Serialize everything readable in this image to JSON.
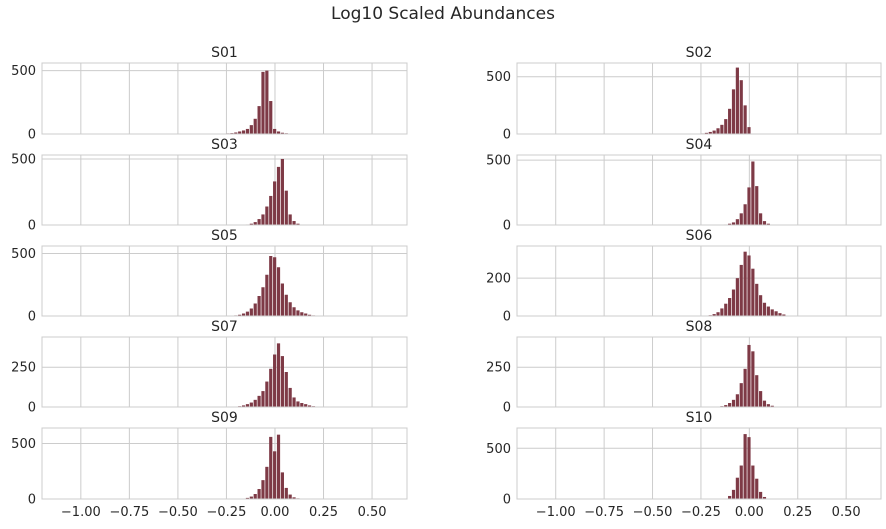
{
  "figure": {
    "title": "Log10 Scaled Abundances"
  },
  "chart_data": {
    "type": "bar",
    "shared_x": {
      "xlim": [
        -1.2,
        0.68
      ],
      "ticks": [
        -1.0,
        -0.75,
        -0.5,
        -0.25,
        0.0,
        0.25,
        0.5
      ],
      "tick_labels": [
        "−1.00",
        "−0.75",
        "−0.50",
        "−0.25",
        "0.00",
        "0.25",
        "0.50"
      ]
    },
    "bar_color": "#7e3a46",
    "bin_width": 0.0195,
    "grid": true,
    "panels": [
      {
        "title": "S01",
        "ylim": [
          0,
          560
        ],
        "yticks": [
          0,
          500
        ],
        "bins": [
          [
            -0.25,
            5
          ],
          [
            -0.23,
            7
          ],
          [
            -0.21,
            12
          ],
          [
            -0.19,
            20
          ],
          [
            -0.17,
            28
          ],
          [
            -0.15,
            40
          ],
          [
            -0.13,
            70
          ],
          [
            -0.11,
            120
          ],
          [
            -0.09,
            220
          ],
          [
            -0.07,
            490
          ],
          [
            -0.05,
            500
          ],
          [
            -0.03,
            260
          ],
          [
            -0.01,
            40
          ],
          [
            0.01,
            20
          ],
          [
            0.03,
            10
          ],
          [
            0.05,
            6
          ]
        ]
      },
      {
        "title": "S02",
        "ylim": [
          0,
          620
        ],
        "yticks": [
          0,
          500
        ],
        "bins": [
          [
            -0.25,
            5
          ],
          [
            -0.23,
            10
          ],
          [
            -0.21,
            18
          ],
          [
            -0.19,
            30
          ],
          [
            -0.17,
            50
          ],
          [
            -0.15,
            80
          ],
          [
            -0.13,
            130
          ],
          [
            -0.11,
            220
          ],
          [
            -0.09,
            390
          ],
          [
            -0.07,
            580
          ],
          [
            -0.05,
            470
          ],
          [
            -0.03,
            250
          ],
          [
            -0.01,
            60
          ]
        ]
      },
      {
        "title": "S03",
        "ylim": [
          0,
          530
        ],
        "yticks": [
          0,
          500
        ],
        "bins": [
          [
            -0.15,
            4
          ],
          [
            -0.13,
            10
          ],
          [
            -0.11,
            22
          ],
          [
            -0.09,
            45
          ],
          [
            -0.07,
            80
          ],
          [
            -0.05,
            140
          ],
          [
            -0.03,
            220
          ],
          [
            -0.01,
            330
          ],
          [
            0.01,
            440
          ],
          [
            0.03,
            500
          ],
          [
            0.05,
            260
          ],
          [
            0.07,
            80
          ],
          [
            0.09,
            30
          ],
          [
            0.11,
            10
          ]
        ]
      },
      {
        "title": "S04",
        "ylim": [
          0,
          540
        ],
        "yticks": [
          0,
          500
        ],
        "bins": [
          [
            -0.13,
            4
          ],
          [
            -0.11,
            10
          ],
          [
            -0.09,
            20
          ],
          [
            -0.07,
            45
          ],
          [
            -0.05,
            90
          ],
          [
            -0.03,
            160
          ],
          [
            -0.01,
            290
          ],
          [
            0.01,
            490
          ],
          [
            0.03,
            300
          ],
          [
            0.05,
            90
          ],
          [
            0.07,
            30
          ],
          [
            0.09,
            10
          ]
        ]
      },
      {
        "title": "S05",
        "ylim": [
          0,
          560
        ],
        "yticks": [
          0,
          500
        ],
        "bins": [
          [
            -0.21,
            5
          ],
          [
            -0.19,
            10
          ],
          [
            -0.17,
            20
          ],
          [
            -0.15,
            35
          ],
          [
            -0.13,
            60
          ],
          [
            -0.11,
            100
          ],
          [
            -0.09,
            160
          ],
          [
            -0.07,
            230
          ],
          [
            -0.05,
            330
          ],
          [
            -0.03,
            480
          ],
          [
            -0.01,
            470
          ],
          [
            0.01,
            390
          ],
          [
            0.03,
            260
          ],
          [
            0.05,
            170
          ],
          [
            0.07,
            110
          ],
          [
            0.09,
            70
          ],
          [
            0.11,
            45
          ],
          [
            0.13,
            30
          ],
          [
            0.15,
            20
          ],
          [
            0.17,
            10
          ],
          [
            0.19,
            5
          ]
        ]
      },
      {
        "title": "S06",
        "ylim": [
          0,
          370
        ],
        "yticks": [
          0,
          200
        ],
        "bins": [
          [
            -0.21,
            4
          ],
          [
            -0.19,
            10
          ],
          [
            -0.17,
            20
          ],
          [
            -0.15,
            40
          ],
          [
            -0.13,
            65
          ],
          [
            -0.11,
            95
          ],
          [
            -0.09,
            140
          ],
          [
            -0.07,
            200
          ],
          [
            -0.05,
            270
          ],
          [
            -0.03,
            340
          ],
          [
            -0.01,
            320
          ],
          [
            0.01,
            250
          ],
          [
            0.03,
            170
          ],
          [
            0.05,
            110
          ],
          [
            0.07,
            70
          ],
          [
            0.09,
            50
          ],
          [
            0.11,
            35
          ],
          [
            0.13,
            25
          ],
          [
            0.15,
            15
          ],
          [
            0.17,
            8
          ]
        ]
      },
      {
        "title": "S07",
        "ylim": [
          0,
          440
        ],
        "yticks": [
          0,
          250
        ],
        "bins": [
          [
            -0.19,
            5
          ],
          [
            -0.17,
            10
          ],
          [
            -0.15,
            18
          ],
          [
            -0.13,
            28
          ],
          [
            -0.11,
            45
          ],
          [
            -0.09,
            70
          ],
          [
            -0.07,
            100
          ],
          [
            -0.05,
            160
          ],
          [
            -0.03,
            240
          ],
          [
            -0.01,
            330
          ],
          [
            0.01,
            400
          ],
          [
            0.03,
            320
          ],
          [
            0.05,
            220
          ],
          [
            0.07,
            120
          ],
          [
            0.09,
            60
          ],
          [
            0.11,
            35
          ],
          [
            0.13,
            25
          ],
          [
            0.15,
            18
          ],
          [
            0.17,
            10
          ],
          [
            0.19,
            5
          ]
        ]
      },
      {
        "title": "S08",
        "ylim": [
          0,
          440
        ],
        "yticks": [
          0,
          250
        ],
        "bins": [
          [
            -0.15,
            5
          ],
          [
            -0.13,
            12
          ],
          [
            -0.11,
            25
          ],
          [
            -0.09,
            45
          ],
          [
            -0.07,
            80
          ],
          [
            -0.05,
            150
          ],
          [
            -0.03,
            240
          ],
          [
            -0.01,
            390
          ],
          [
            0.01,
            350
          ],
          [
            0.03,
            200
          ],
          [
            0.05,
            100
          ],
          [
            0.07,
            40
          ],
          [
            0.09,
            18
          ],
          [
            0.11,
            8
          ]
        ]
      },
      {
        "title": "S09",
        "ylim": [
          0,
          640
        ],
        "yticks": [
          0,
          500
        ],
        "bins": [
          [
            -0.17,
            4
          ],
          [
            -0.15,
            10
          ],
          [
            -0.13,
            22
          ],
          [
            -0.11,
            45
          ],
          [
            -0.09,
            90
          ],
          [
            -0.07,
            170
          ],
          [
            -0.05,
            290
          ],
          [
            -0.03,
            560
          ],
          [
            -0.01,
            430
          ],
          [
            0.01,
            580
          ],
          [
            0.03,
            240
          ],
          [
            0.05,
            100
          ],
          [
            0.07,
            40
          ],
          [
            0.09,
            15
          ],
          [
            0.11,
            6
          ]
        ]
      },
      {
        "title": "S10",
        "ylim": [
          0,
          700
        ],
        "yticks": [
          0,
          500
        ],
        "bins": [
          [
            -0.11,
            30
          ],
          [
            -0.09,
            90
          ],
          [
            -0.07,
            210
          ],
          [
            -0.05,
            330
          ],
          [
            -0.03,
            640
          ],
          [
            -0.01,
            610
          ],
          [
            0.01,
            330
          ],
          [
            0.03,
            200
          ],
          [
            0.05,
            70
          ],
          [
            0.07,
            20
          ]
        ]
      }
    ]
  }
}
